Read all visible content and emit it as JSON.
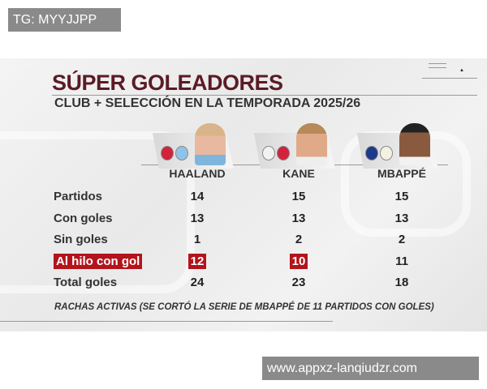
{
  "overlay_label": "TG: MYYJJPP",
  "watermark": "www.appxz-lanqiudzr.com",
  "graphic": {
    "title": "SÚPER GOLEADORES",
    "subtitle": "CLUB + SELECCIÓN EN LA TEMPORADA 2025/26",
    "players": [
      {
        "name": "HAALAND",
        "badges": [
          "norway-crest-icon",
          "manchester-city-crest-icon"
        ]
      },
      {
        "name": "KANE",
        "badges": [
          "england-crest-icon",
          "bayern-munich-crest-icon"
        ]
      },
      {
        "name": "MBAPPÉ",
        "badges": [
          "france-crest-icon",
          "real-madrid-crest-icon"
        ]
      }
    ],
    "rows": [
      {
        "label": "Partidos",
        "values": [
          "14",
          "15",
          "15"
        ],
        "highlight": [
          false,
          false,
          false
        ]
      },
      {
        "label": "Con goles",
        "values": [
          "13",
          "13",
          "13"
        ],
        "highlight": [
          false,
          false,
          false
        ]
      },
      {
        "label": "Sin goles",
        "values": [
          "1",
          "2",
          "2"
        ],
        "highlight": [
          false,
          false,
          false
        ]
      },
      {
        "label": "Al hilo con gol",
        "values": [
          "12",
          "10",
          "11"
        ],
        "highlight": [
          true,
          true,
          false
        ],
        "label_highlight": true
      },
      {
        "label": "Total goles",
        "values": [
          "24",
          "23",
          "18"
        ],
        "highlight": [
          false,
          false,
          false
        ]
      }
    ],
    "footnote": "RACHAS ACTIVAS (SE CORTÓ LA SERIE DE MBAPPÉ DE 11 PARTIDOS CON GOLES)",
    "colors": {
      "title": "#5b1b25",
      "highlight": "#b3141c"
    }
  }
}
